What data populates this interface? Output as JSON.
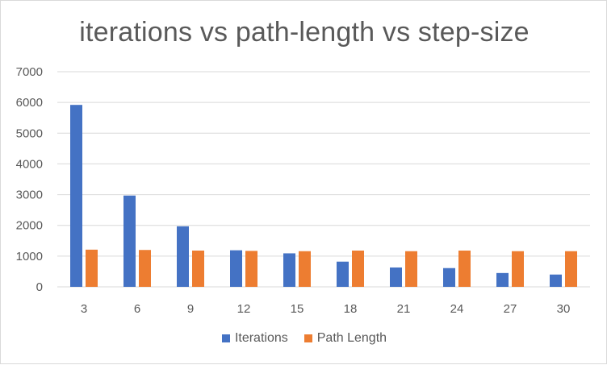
{
  "chart_data": {
    "type": "bar",
    "title": "iterations vs path-length vs step-size",
    "xlabel": "",
    "ylabel": "",
    "categories": [
      "3",
      "6",
      "9",
      "12",
      "15",
      "18",
      "21",
      "24",
      "27",
      "30"
    ],
    "series": [
      {
        "name": "Iterations",
        "color": "#4472c4",
        "values": [
          5920,
          2970,
          1970,
          1190,
          1090,
          820,
          630,
          610,
          450,
          400
        ]
      },
      {
        "name": "Path Length",
        "color": "#ed7d31",
        "values": [
          1210,
          1200,
          1180,
          1170,
          1160,
          1180,
          1160,
          1180,
          1160,
          1160
        ]
      }
    ],
    "ylim": [
      0,
      7000
    ],
    "yticks": [
      "0",
      "1000",
      "2000",
      "3000",
      "4000",
      "5000",
      "6000",
      "7000"
    ],
    "grid": true,
    "legend_position": "bottom"
  }
}
